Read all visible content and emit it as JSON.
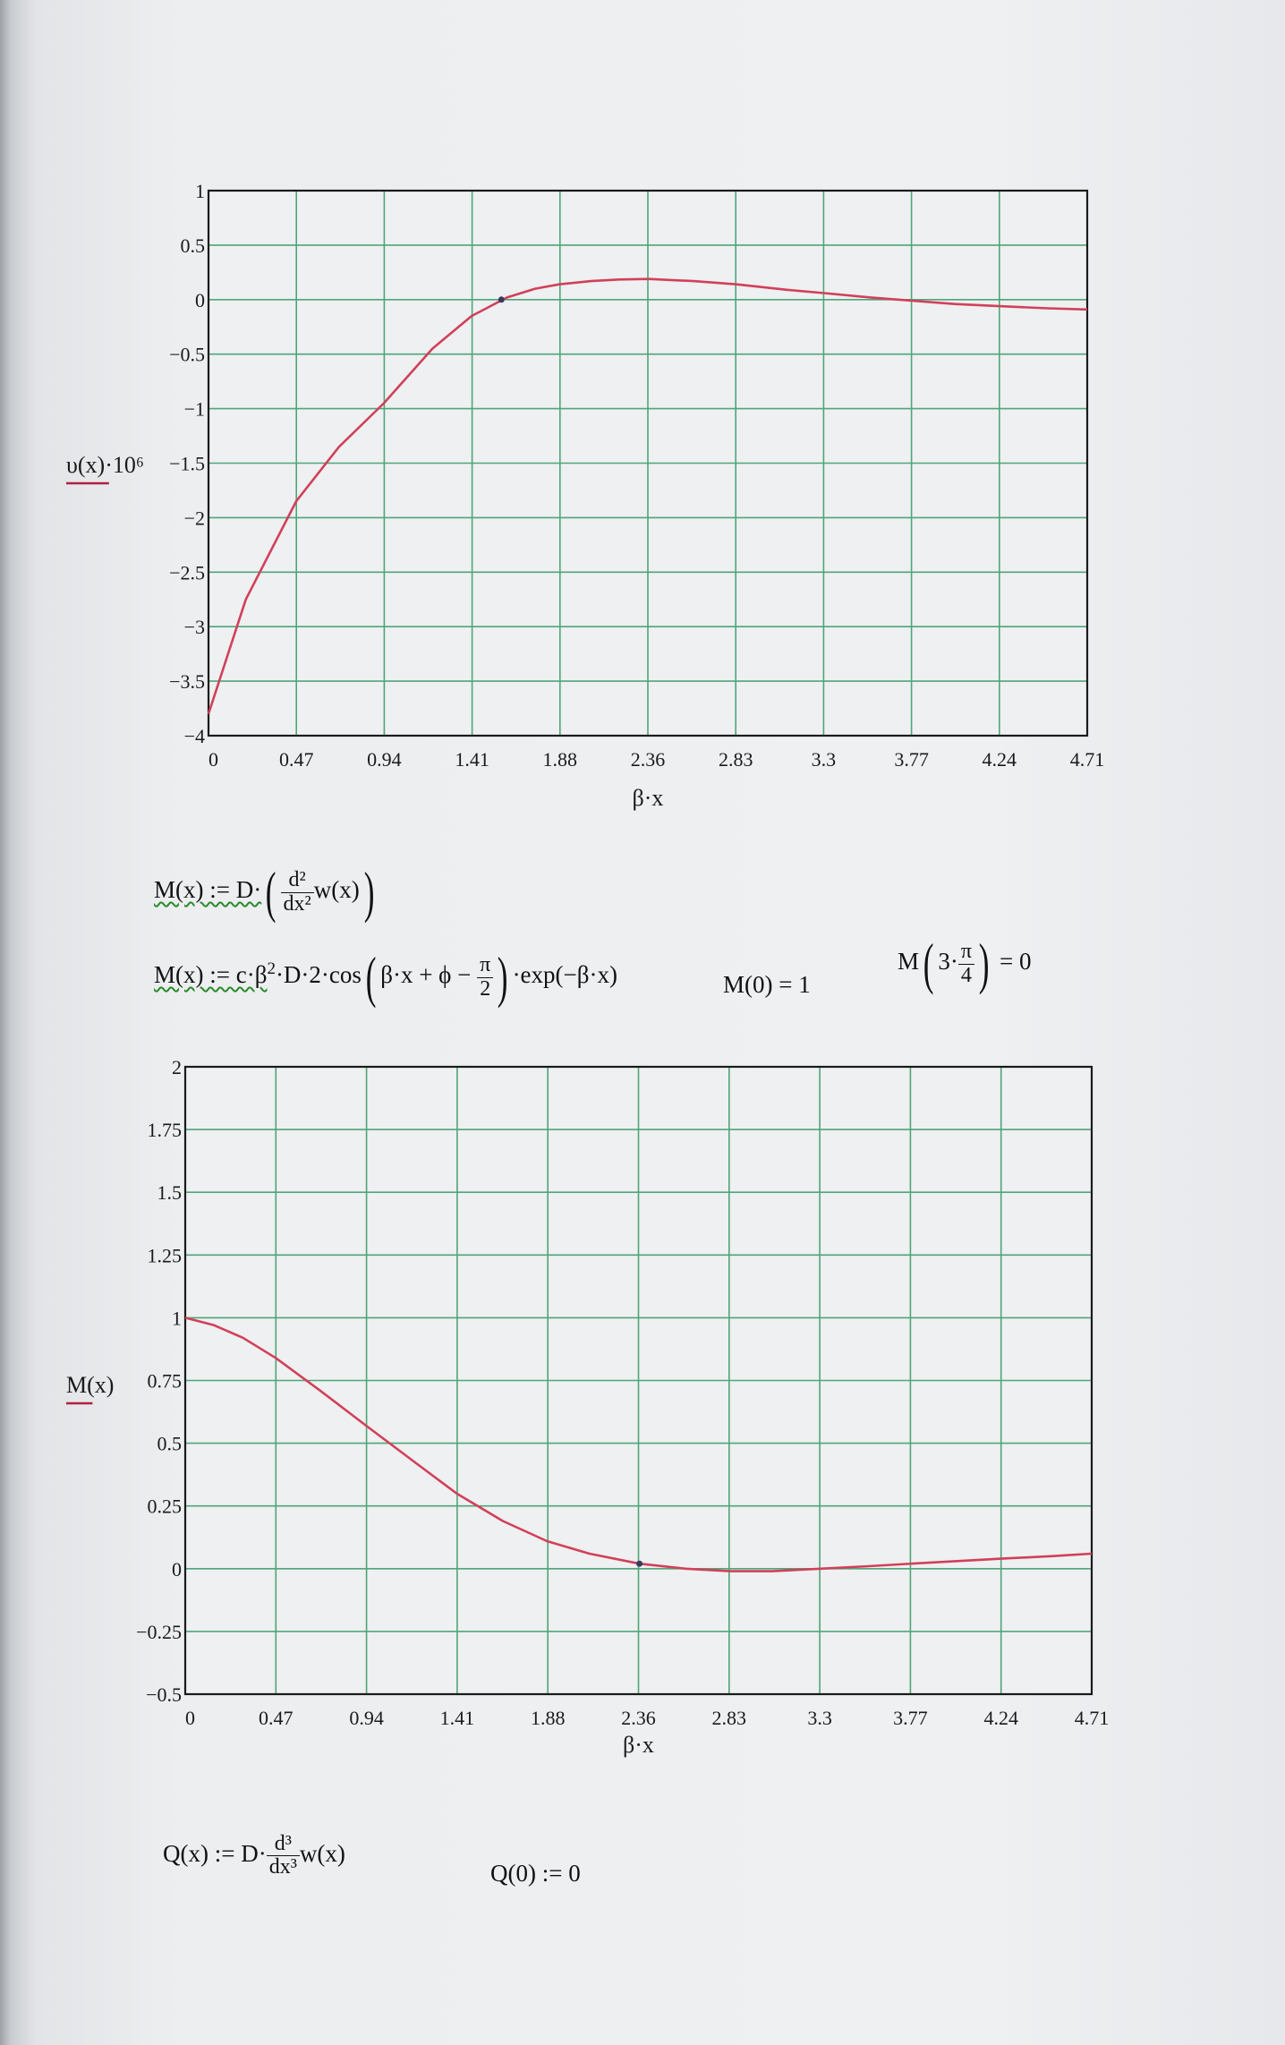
{
  "chart_data": [
    {
      "type": "line",
      "ylabel": "υ(x)·10⁶",
      "xlabel": "β·x",
      "x_ticks": [
        "0",
        "0.47",
        "0.94",
        "1.41",
        "1.88",
        "2.36",
        "2.83",
        "3.3",
        "3.77",
        "4.24",
        "4.71"
      ],
      "y_ticks": [
        "−4",
        "−3.5",
        "−3",
        "−2.5",
        "−2",
        "−1.5",
        "−1",
        "−0.5",
        "0",
        "0.5",
        "1"
      ],
      "xlim": [
        0,
        4.71
      ],
      "ylim": [
        -4,
        1
      ],
      "grid": true,
      "line_color": "#d1405a",
      "grid_color": "#4fa57a",
      "series": [
        {
          "x": [
            0,
            0.2,
            0.47,
            0.7,
            0.94,
            1.2,
            1.41,
            1.6,
            1.75,
            1.88,
            2.05,
            2.2,
            2.36,
            2.6,
            2.83,
            3.1,
            3.3,
            3.55,
            3.77,
            4.0,
            4.24,
            4.5,
            4.71
          ],
          "y": [
            -3.8,
            -2.75,
            -1.85,
            -1.35,
            -0.95,
            -0.45,
            -0.15,
            0.02,
            0.1,
            0.14,
            0.17,
            0.185,
            0.19,
            0.17,
            0.14,
            0.09,
            0.06,
            0.02,
            -0.01,
            -0.04,
            -0.06,
            -0.08,
            -0.09
          ]
        }
      ],
      "marker": {
        "x": 1.57,
        "y": 0
      }
    },
    {
      "type": "line",
      "ylabel": "M(x)",
      "xlabel": "β·x",
      "x_ticks": [
        "0",
        "0.47",
        "0.94",
        "1.41",
        "1.88",
        "2.36",
        "2.83",
        "3.3",
        "3.77",
        "4.24",
        "4.71"
      ],
      "y_ticks": [
        "−0.5",
        "−0.25",
        "0",
        "0.25",
        "0.5",
        "0.75",
        "1",
        "1.25",
        "1.5",
        "1.75",
        "2"
      ],
      "xlim": [
        0,
        4.71
      ],
      "ylim": [
        -0.5,
        2
      ],
      "grid": true,
      "line_color": "#d1405a",
      "grid_color": "#4fa57a",
      "series": [
        {
          "x": [
            0,
            0.15,
            0.3,
            0.47,
            0.7,
            0.94,
            1.2,
            1.41,
            1.65,
            1.88,
            2.1,
            2.36,
            2.6,
            2.83,
            3.05,
            3.3,
            3.55,
            3.77,
            4.0,
            4.24,
            4.5,
            4.71
          ],
          "y": [
            1.0,
            0.97,
            0.92,
            0.84,
            0.71,
            0.57,
            0.42,
            0.3,
            0.19,
            0.11,
            0.06,
            0.02,
            0.0,
            -0.01,
            -0.01,
            0.0,
            0.01,
            0.02,
            0.03,
            0.04,
            0.05,
            0.06
          ]
        }
      ],
      "marker": {
        "x": 2.36,
        "y": 0.02
      }
    }
  ],
  "formulas": {
    "m_def_lhs": "M(x) := D·",
    "m_def_num": "d²",
    "m_def_den": "dx²",
    "m_def_arg": "w(x)",
    "m_expr_lhs": "M(x) := c·β",
    "m_expr_sq": "2",
    "m_expr_mid": "·D·2·cos",
    "m_expr_arg": "β·x + ϕ −",
    "m_expr_pi": "π",
    "m_expr_two": "2",
    "m_expr_tail": "·exp(−β·x)",
    "m0": "M(0) = 1",
    "m_eval_m": "M",
    "m_eval_three": "3·",
    "m_eval_pi": "π",
    "m_eval_four": "4",
    "m_eval_res": "= 0",
    "q_def_lhs": "Q(x) := D·",
    "q_def_num": "d³",
    "q_def_den": "dx³",
    "q_def_arg": "w(x)",
    "q0": "Q(0) := 0"
  }
}
